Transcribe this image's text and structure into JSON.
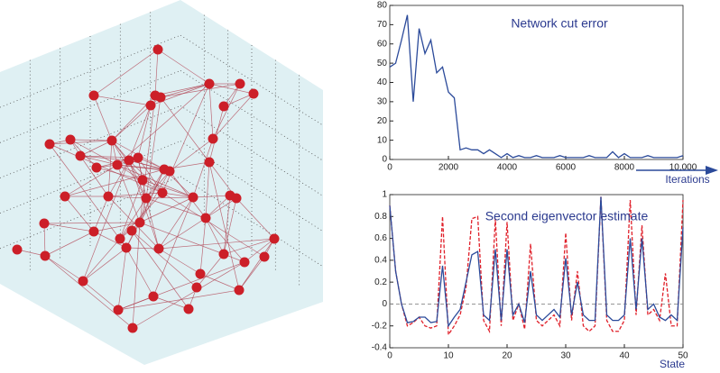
{
  "chart_data": [
    {
      "type": "line",
      "title": "Network cut error",
      "x_label": "Iterations",
      "x": [
        0,
        200,
        400,
        600,
        800,
        1000,
        1200,
        1400,
        1600,
        1800,
        2000,
        2200,
        2400,
        2600,
        2800,
        3000,
        3200,
        3400,
        3600,
        3800,
        4000,
        4200,
        4400,
        4600,
        4800,
        5000,
        5200,
        5400,
        5600,
        5800,
        6000,
        6200,
        6400,
        6600,
        6800,
        7000,
        7200,
        7400,
        7600,
        7800,
        8000,
        8200,
        8400,
        8600,
        8800,
        9000,
        9200,
        9400,
        9600,
        9800,
        10000
      ],
      "series": [
        {
          "color": "#2b4a9a",
          "values": [
            48,
            50,
            62,
            75,
            30,
            68,
            55,
            62,
            45,
            48,
            35,
            32,
            5,
            6,
            5,
            5,
            3,
            5,
            3,
            1,
            3,
            1,
            2,
            1,
            1,
            2,
            1,
            1,
            1,
            2,
            1,
            1,
            1,
            1,
            2,
            1,
            1,
            1,
            4,
            1,
            3,
            1,
            1,
            1,
            2,
            1,
            1,
            1,
            1,
            1,
            2
          ]
        }
      ],
      "xlim": [
        0,
        10000
      ],
      "xticks": [
        0,
        2000,
        4000,
        6000,
        8000,
        {
          "value": 10000,
          "label": "10,000"
        }
      ],
      "ylim": [
        0,
        80
      ],
      "yticks": [
        0,
        10,
        20,
        30,
        40,
        50,
        60,
        70,
        80
      ]
    },
    {
      "type": "line",
      "title": "Second eigenvector estimate",
      "x_label": "State",
      "x": [
        0,
        1,
        2,
        3,
        4,
        5,
        6,
        7,
        8,
        9,
        10,
        11,
        12,
        13,
        14,
        15,
        16,
        17,
        18,
        19,
        20,
        21,
        22,
        23,
        24,
        25,
        26,
        27,
        28,
        29,
        30,
        31,
        32,
        33,
        34,
        35,
        36,
        37,
        38,
        39,
        40,
        41,
        42,
        43,
        44,
        45,
        46,
        47,
        48,
        49,
        50
      ],
      "series": [
        {
          "color": "#e0202a",
          "dashed": true,
          "values": [
            0.9,
            0.3,
            0,
            -0.2,
            -0.17,
            -0.12,
            -0.2,
            -0.22,
            -0.2,
            0.8,
            -0.28,
            -0.2,
            -0.1,
            0.15,
            0.78,
            0.8,
            -0.15,
            -0.25,
            0.78,
            -0.2,
            0.75,
            -0.15,
            0,
            -0.23,
            0.55,
            -0.15,
            -0.2,
            -0.15,
            -0.1,
            -0.2,
            0.65,
            -0.15,
            0.3,
            -0.2,
            -0.25,
            -0.2,
            0.98,
            -0.15,
            -0.25,
            -0.25,
            -0.15,
            0.95,
            -0.1,
            0.72,
            -0.1,
            -0.05,
            -0.15,
            0.28,
            -0.2,
            -0.2,
            0.95
          ]
        },
        {
          "color": "#2b4a9a",
          "values": [
            0.9,
            0.3,
            0,
            -0.17,
            -0.16,
            -0.12,
            -0.12,
            -0.17,
            -0.16,
            0.35,
            -0.2,
            -0.12,
            -0.05,
            0.2,
            0.45,
            0.48,
            -0.1,
            -0.15,
            0.5,
            -0.15,
            0.5,
            -0.1,
            0,
            -0.17,
            0.3,
            -0.1,
            -0.15,
            -0.1,
            -0.05,
            -0.12,
            0.42,
            -0.1,
            0.2,
            -0.1,
            -0.15,
            -0.15,
            0.98,
            -0.1,
            -0.15,
            -0.15,
            -0.1,
            0.6,
            -0.05,
            0.6,
            -0.05,
            0,
            -0.12,
            -0.15,
            -0.1,
            -0.15,
            0.7
          ]
        }
      ],
      "xlim": [
        0,
        50
      ],
      "xticks": [
        0,
        10,
        20,
        30,
        40,
        50
      ],
      "ylim": [
        -0.4,
        1
      ],
      "yticks": [
        -0.4,
        -0.2,
        0,
        0.2,
        0.4,
        0.6,
        0.8,
        1
      ]
    }
  ]
}
